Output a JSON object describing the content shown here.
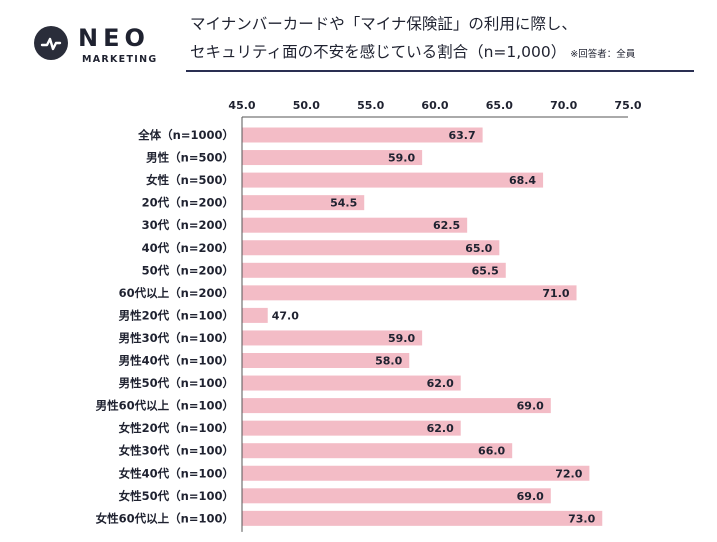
{
  "brand": {
    "name": "NEO",
    "sub": "MARKETING",
    "icon": "pulse-logo-icon"
  },
  "header": {
    "title_line1": "マイナンバーカードや「マイナ保険証」の利用に際し、",
    "title_line2": "セキュリティ面の不安を感じている割合（n=1,000）",
    "note": "※回答者：全員"
  },
  "colors": {
    "bar": "#f3bcc6",
    "rule": "#2a2f52",
    "text": "#1f2230"
  },
  "chart_data": {
    "type": "bar",
    "orientation": "horizontal",
    "xlim": [
      45.0,
      75.0
    ],
    "ticks": [
      "45.0",
      "50.0",
      "55.0",
      "60.0",
      "65.0",
      "70.0",
      "75.0"
    ],
    "tick_axis_position": "top",
    "grid": false,
    "categories": [
      "全体（n=1000）",
      "男性（n=500）",
      "女性（n=500）",
      "20代（n=200）",
      "30代（n=200）",
      "40代（n=200）",
      "50代（n=200）",
      "60代以上（n=200）",
      "男性20代（n=100）",
      "男性30代（n=100）",
      "男性40代（n=100）",
      "男性50代（n=100）",
      "男性60代以上（n=100）",
      "女性20代（n=100）",
      "女性30代（n=100）",
      "女性40代（n=100）",
      "女性50代（n=100）",
      "女性60代以上（n=100）"
    ],
    "values": [
      63.7,
      59.0,
      68.4,
      54.5,
      62.5,
      65.0,
      65.5,
      71.0,
      47.0,
      59.0,
      58.0,
      62.0,
      69.0,
      62.0,
      66.0,
      72.0,
      69.0,
      73.0
    ],
    "value_labels": [
      "63.7",
      "59.0",
      "68.4",
      "54.5",
      "62.5",
      "65.0",
      "65.5",
      "71.0",
      "47.0",
      "59.0",
      "58.0",
      "62.0",
      "69.0",
      "62.0",
      "66.0",
      "72.0",
      "69.0",
      "73.0"
    ]
  }
}
